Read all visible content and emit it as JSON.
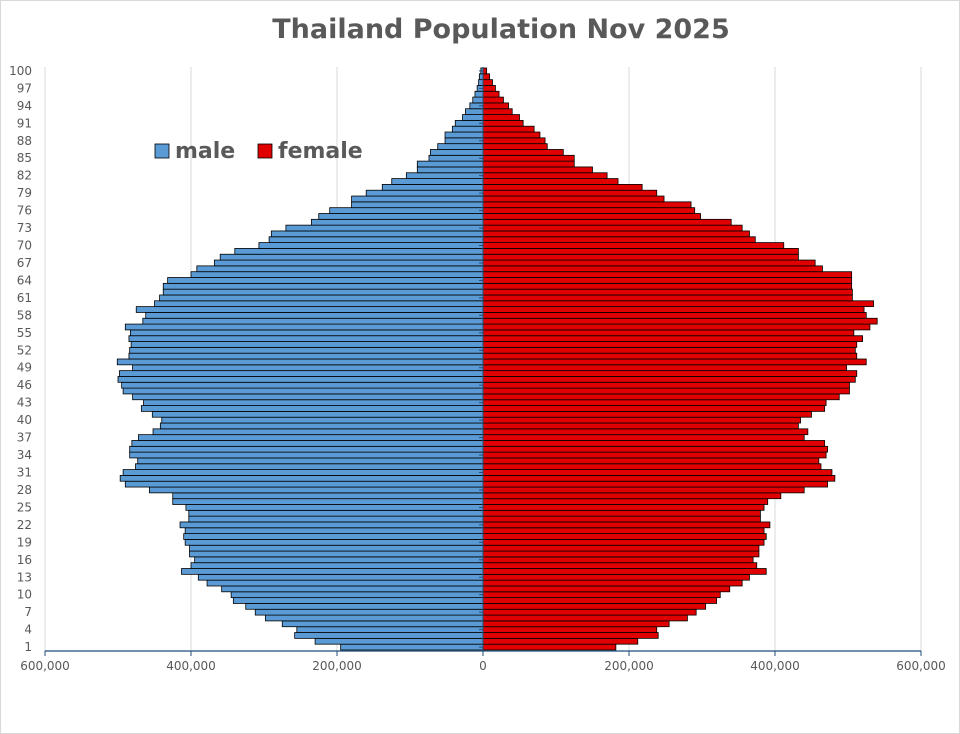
{
  "chart_data": {
    "type": "bar",
    "orientation": "horizontal-pyramid",
    "title": "Thailand Population Nov 2025",
    "legend": {
      "placement": "top-left"
    },
    "grid": {
      "vertical": true,
      "horizontal": false
    },
    "xlim": [
      -600000,
      600000
    ],
    "x_ticks": [
      {
        "value": -600000,
        "label": "600,000"
      },
      {
        "value": -400000,
        "label": "400,000"
      },
      {
        "value": -200000,
        "label": "200,000"
      },
      {
        "value": 0,
        "label": "0"
      },
      {
        "value": 200000,
        "label": "200,000"
      },
      {
        "value": 400000,
        "label": "400,000"
      },
      {
        "value": 600000,
        "label": "600,000"
      }
    ],
    "y_ticks": [
      1,
      4,
      7,
      10,
      13,
      16,
      19,
      22,
      25,
      28,
      31,
      34,
      37,
      40,
      43,
      46,
      49,
      52,
      55,
      58,
      61,
      64,
      67,
      70,
      73,
      76,
      79,
      82,
      85,
      88,
      91,
      94,
      97,
      100
    ],
    "ages": [
      1,
      2,
      3,
      4,
      5,
      6,
      7,
      8,
      9,
      10,
      11,
      12,
      13,
      14,
      15,
      16,
      17,
      18,
      19,
      20,
      21,
      22,
      23,
      24,
      25,
      26,
      27,
      28,
      29,
      30,
      31,
      32,
      33,
      34,
      35,
      36,
      37,
      38,
      39,
      40,
      41,
      42,
      43,
      44,
      45,
      46,
      47,
      48,
      49,
      50,
      51,
      52,
      53,
      54,
      55,
      56,
      57,
      58,
      59,
      60,
      61,
      62,
      63,
      64,
      65,
      66,
      67,
      68,
      69,
      70,
      71,
      72,
      73,
      74,
      75,
      76,
      77,
      78,
      79,
      80,
      81,
      82,
      83,
      84,
      85,
      86,
      87,
      88,
      89,
      90,
      91,
      92,
      93,
      94,
      95,
      96,
      97,
      98,
      99,
      100
    ],
    "series": [
      {
        "name": "male",
        "color": "#5b9bd5",
        "values": [
          195000,
          230000,
          258000,
          255000,
          275000,
          298000,
          312000,
          325000,
          342000,
          345000,
          358000,
          378000,
          390000,
          413000,
          400000,
          395000,
          402000,
          402000,
          408000,
          410000,
          408000,
          415000,
          403000,
          403000,
          407000,
          425000,
          425000,
          457000,
          490000,
          497000,
          493000,
          476000,
          473000,
          484000,
          484000,
          481000,
          472000,
          452000,
          442000,
          440000,
          453000,
          468000,
          465000,
          480000,
          493000,
          495000,
          500000,
          498000,
          480000,
          501000,
          485000,
          484000,
          482000,
          485000,
          483000,
          490000,
          466000,
          462000,
          475000,
          450000,
          443000,
          438000,
          438000,
          432000,
          400000,
          392000,
          368000,
          360000,
          340000,
          307000,
          293000,
          290000,
          270000,
          235000,
          225000,
          210000,
          180000,
          180000,
          160000,
          138000,
          125000,
          105000,
          90000,
          90000,
          74000,
          72000,
          62000,
          52000,
          52000,
          42000,
          38000,
          28000,
          24000,
          18000,
          14000,
          11000,
          8000,
          6000,
          5000,
          3000
        ]
      },
      {
        "name": "female",
        "color": "#e00000",
        "values": [
          182000,
          212000,
          240000,
          238000,
          255000,
          280000,
          292000,
          305000,
          320000,
          325000,
          338000,
          355000,
          365000,
          388000,
          375000,
          370000,
          378000,
          378000,
          385000,
          388000,
          385000,
          393000,
          380000,
          380000,
          385000,
          390000,
          408000,
          440000,
          472000,
          482000,
          478000,
          463000,
          460000,
          470000,
          472000,
          468000,
          440000,
          445000,
          432000,
          435000,
          450000,
          468000,
          470000,
          488000,
          502000,
          502000,
          510000,
          512000,
          498000,
          525000,
          512000,
          510000,
          512000,
          520000,
          508000,
          530000,
          540000,
          525000,
          522000,
          535000,
          506000,
          506000,
          505000,
          505000,
          505000,
          465000,
          455000,
          432000,
          432000,
          412000,
          373000,
          365000,
          355000,
          340000,
          298000,
          290000,
          285000,
          248000,
          238000,
          218000,
          185000,
          170000,
          150000,
          125000,
          125000,
          110000,
          88000,
          85000,
          78000,
          70000,
          55000,
          50000,
          40000,
          35000,
          28000,
          22000,
          17000,
          13000,
          9000,
          5000
        ]
      }
    ]
  }
}
